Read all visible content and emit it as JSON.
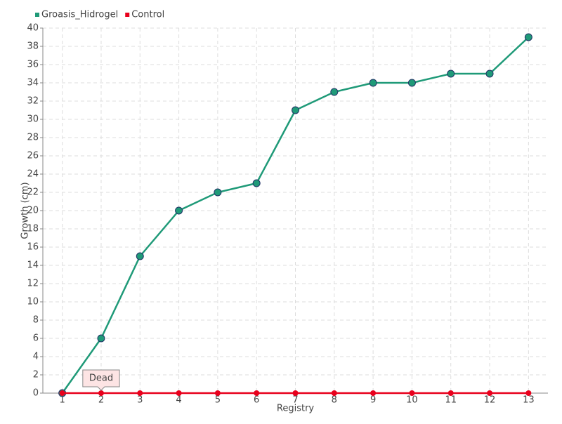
{
  "chart_data": {
    "type": "line",
    "x_label": "Registry",
    "y_label": "Growth (cm)",
    "categories": [
      "1",
      "2",
      "3",
      "4",
      "5",
      "6",
      "7",
      "8",
      "9",
      "10",
      "11",
      "12",
      "13"
    ],
    "series": [
      {
        "name": "Groasis_Hidrogel",
        "color": "#1f9a78",
        "values": [
          0,
          6,
          15,
          20,
          22,
          23,
          31,
          33,
          34,
          34,
          35,
          35,
          39
        ]
      },
      {
        "name": "Control",
        "color": "#e8001c",
        "values": [
          0,
          0,
          0,
          0,
          0,
          0,
          0,
          0,
          0,
          0,
          0,
          0,
          0
        ]
      }
    ],
    "ylim": [
      0,
      40
    ],
    "yticks": [
      0,
      2,
      4,
      6,
      8,
      10,
      12,
      14,
      16,
      18,
      20,
      22,
      24,
      26,
      28,
      30,
      32,
      34,
      36,
      38,
      40
    ],
    "grid": true,
    "legend": "top-left",
    "annotations": [
      {
        "text": "Dead",
        "x": "2",
        "y": 0
      }
    ]
  }
}
